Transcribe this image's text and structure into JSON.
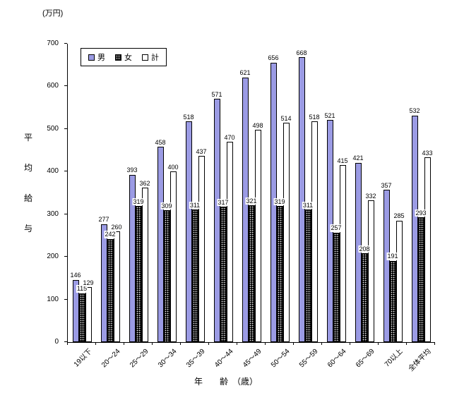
{
  "chart": {
    "unit_label": "(万円)",
    "x_axis_title": "年　　齢　（歳）",
    "y_axis_label_chars": [
      "平",
      "均",
      "給",
      "与"
    ]
  },
  "chart_data": {
    "type": "bar",
    "title": "",
    "unit": "万円",
    "ylabel": "平均給与",
    "xlabel": "年齢（歳）",
    "ylim": [
      0,
      700
    ],
    "y_ticks": [
      0,
      100,
      200,
      300,
      400,
      500,
      600,
      700
    ],
    "grid": false,
    "legend_position": "top-left",
    "categories": [
      "19以下",
      "20～24",
      "25～29",
      "30～34",
      "35～39",
      "40～44",
      "45～49",
      "50～54",
      "55～59",
      "60～64",
      "65～69",
      "70以上",
      "全体平均"
    ],
    "series": [
      {
        "name": "男",
        "color": "#9b9be4",
        "values": [
          146,
          277,
          393,
          458,
          518,
          571,
          621,
          656,
          668,
          521,
          421,
          357,
          532
        ]
      },
      {
        "name": "女",
        "color": "#000000",
        "pattern": "white-dots",
        "values": [
          115,
          242,
          319,
          309,
          311,
          317,
          321,
          319,
          311,
          257,
          208,
          191,
          293
        ]
      },
      {
        "name": "計",
        "color": "#ffffff",
        "values": [
          129,
          260,
          362,
          400,
          437,
          470,
          498,
          514,
          518,
          415,
          332,
          285,
          433
        ]
      }
    ]
  }
}
